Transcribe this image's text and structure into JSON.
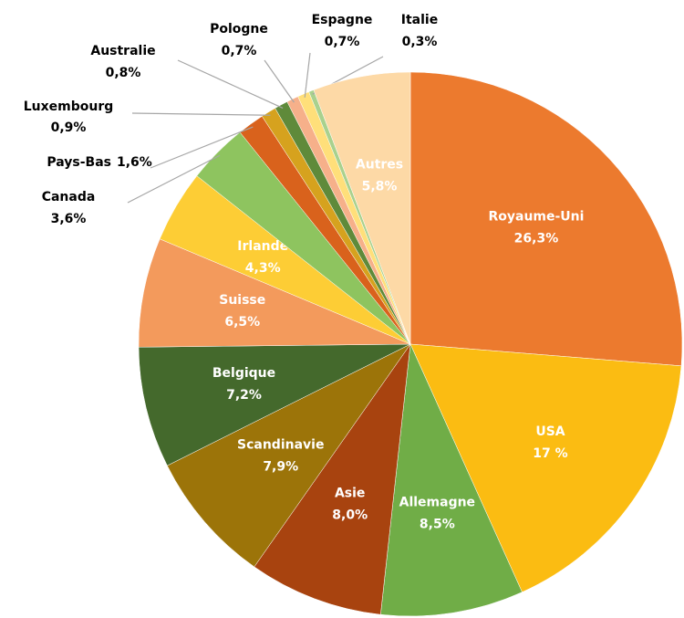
{
  "chart_data": {
    "type": "pie",
    "categories": [
      "Royaume-Uni",
      "USA",
      "Allemagne",
      "Asie",
      "Scandinavie",
      "Belgique",
      "Suisse",
      "Irlande",
      "Canada",
      "Pays-Bas",
      "Luxembourg",
      "Australie",
      "Pologne",
      "Espagne",
      "Italie",
      "Autres"
    ],
    "values": [
      26.3,
      17,
      8.5,
      8.0,
      7.9,
      7.2,
      6.5,
      4.3,
      3.6,
      1.6,
      0.9,
      0.8,
      0.7,
      0.7,
      0.3,
      5.8
    ],
    "value_labels": [
      "26,3%",
      "17 %",
      "8,5%",
      "8,0%",
      "7,9%",
      "7,2%",
      "6,5%",
      "4,3%",
      "3,6%",
      "1,6%",
      "0,9%",
      "0,8%",
      "0,7%",
      "0,7%",
      "0,3%",
      "5,8%"
    ],
    "colors": [
      "#ec7a2e",
      "#fbbc12",
      "#70ad47",
      "#a8430f",
      "#9c7409",
      "#44692c",
      "#f39a5c",
      "#fdcd35",
      "#8ec45f",
      "#d9621c",
      "#d6a21e",
      "#5f8a3a",
      "#f6b08a",
      "#ffdf7a",
      "#a9d18e",
      "#fdd9a6"
    ]
  }
}
